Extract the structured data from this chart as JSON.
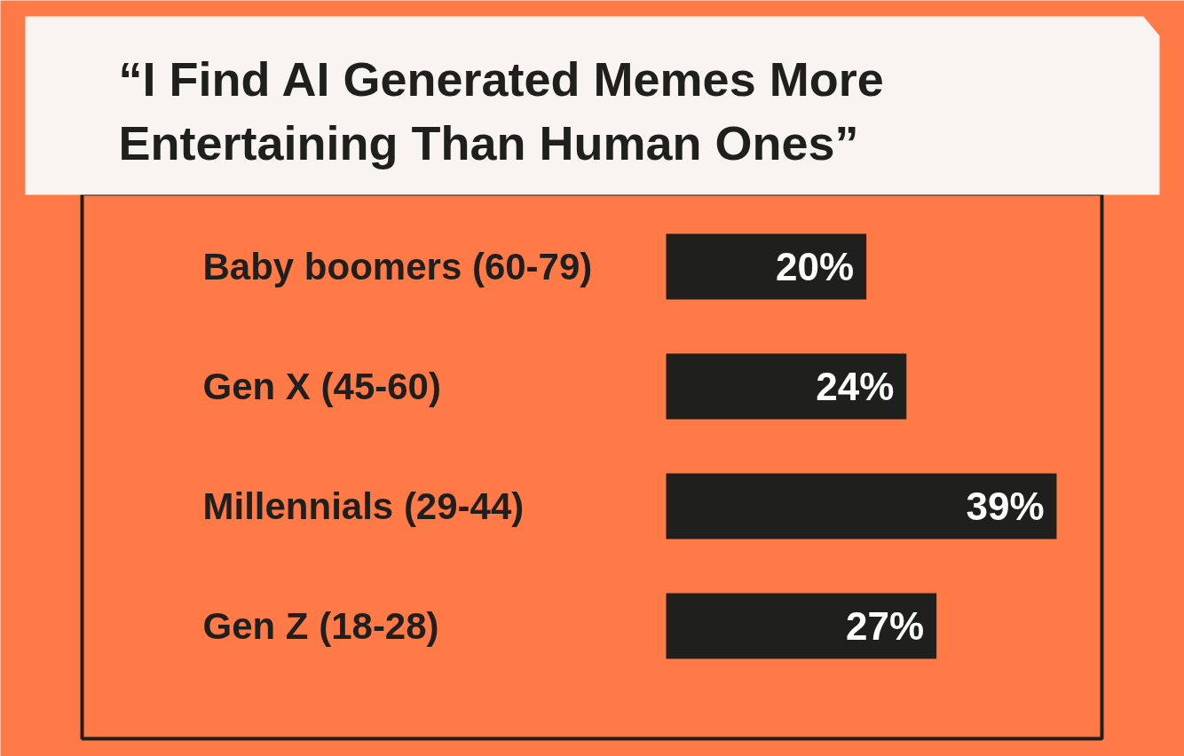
{
  "chart_data": {
    "type": "bar",
    "orientation": "horizontal",
    "title": "“I Find AI Generated Memes More Entertaining Than Human Ones”",
    "categories": [
      "Baby boomers (60-79)",
      "Gen X (45-60)",
      "Millennials (29-44)",
      "Gen Z (18-28)"
    ],
    "values": [
      20,
      24,
      39,
      27
    ],
    "value_labels": [
      "20%",
      "24%",
      "39%",
      "27%"
    ],
    "color": "#1f1f1d"
  }
}
